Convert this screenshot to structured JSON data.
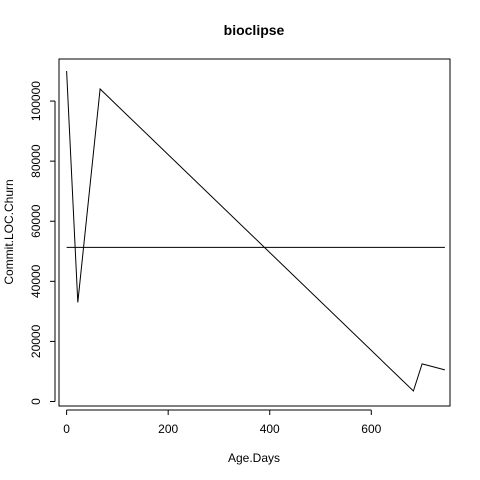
{
  "chart_data": {
    "type": "line",
    "title": "bioclipse",
    "xlabel": "Age.Days",
    "ylabel": "Commit.LOC.Churn",
    "xlim": [
      -15,
      755
    ],
    "ylim": [
      -1500,
      114000
    ],
    "x_ticks": [
      0,
      200,
      400,
      600
    ],
    "x_tick_labels": [
      "0",
      "200",
      "400",
      "600"
    ],
    "y_ticks": [
      0,
      20000,
      40000,
      60000,
      80000,
      100000
    ],
    "y_tick_labels": [
      "0",
      "20000",
      "40000",
      "60000",
      "80000",
      "100000"
    ],
    "grid": false,
    "legend": "none",
    "series": [
      {
        "x": [
          0,
          22,
          66,
          683,
          700,
          745
        ],
        "values": [
          110000,
          33000,
          104000,
          3500,
          12500,
          10500
        ]
      }
    ],
    "reference_line": {
      "type": "horizontal",
      "y": 51300,
      "x_range": [
        0,
        745
      ]
    },
    "colors": {
      "line": "#000000",
      "axes": "#000000",
      "background": "#ffffff"
    }
  }
}
